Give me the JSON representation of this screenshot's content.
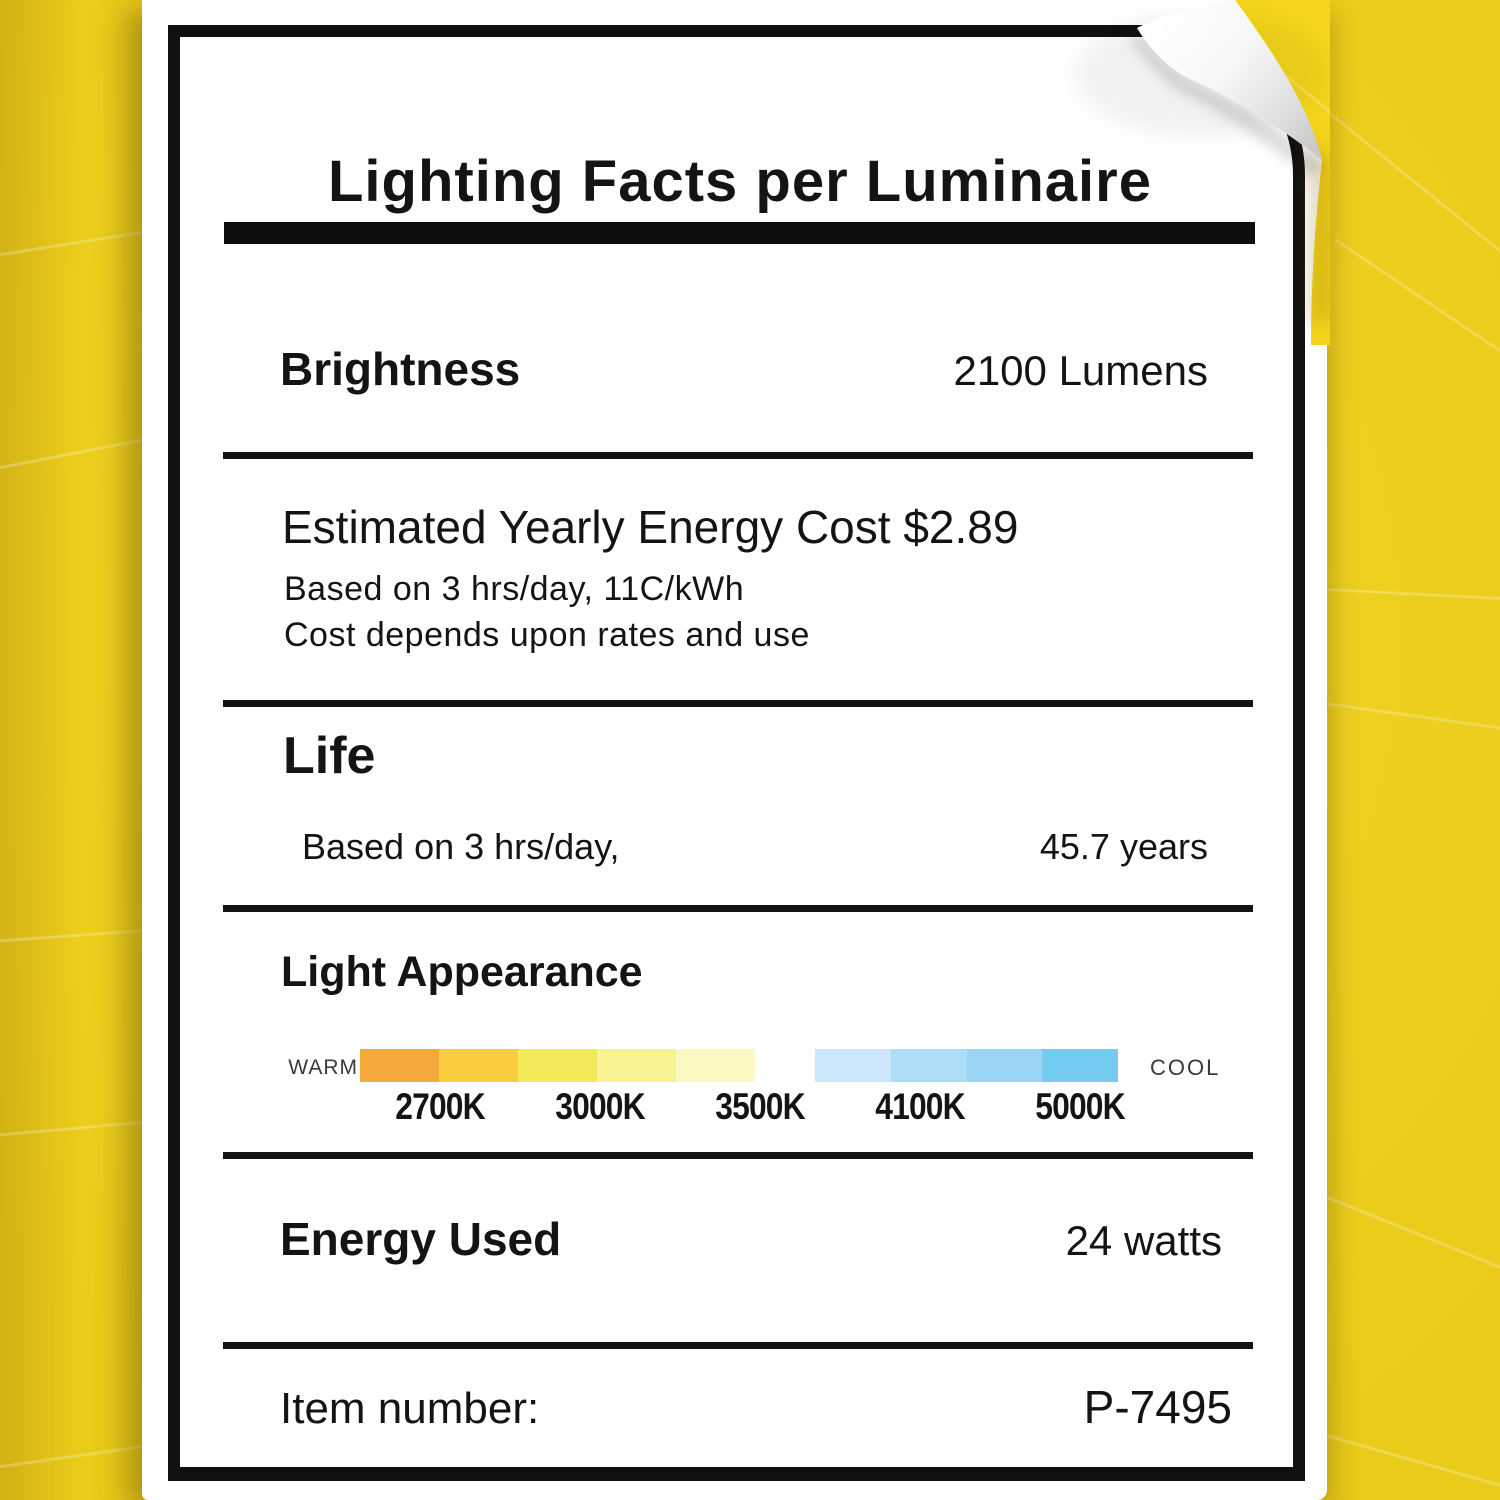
{
  "colors": {
    "background": "#F4D51B",
    "ink": "#141414",
    "frame": "#101010"
  },
  "label": {
    "title": "Lighting Facts per Luminaire",
    "brightness": {
      "name": "Brightness",
      "value": "2100 Lumens"
    },
    "energy_cost": {
      "heading": "Estimated Yearly Energy Cost $2.89",
      "basis": "Based on 3 hrs/day, 11C/kWh",
      "note": "Cost depends upon rates and use"
    },
    "life": {
      "heading": "Life",
      "basis": "Based on 3 hrs/day,",
      "value": "45.7 years"
    },
    "light_appearance": {
      "heading": "Light Appearance",
      "warm_label": "WARM",
      "cool_label": "COOL",
      "ticks": [
        "2700K",
        "3000K",
        "3500K",
        "4100K",
        "5000K"
      ],
      "warm_colors": [
        "#F4A93C",
        "#FACD3F",
        "#F1E95A",
        "#F7F292",
        "#FBF8C2"
      ],
      "cool_colors": [
        "#CCE6FB",
        "#AFDDF8",
        "#9BD5F6",
        "#74CBF0"
      ]
    },
    "energy_used": {
      "name": "Energy Used",
      "value": "24 watts"
    },
    "item_number": {
      "name": "Item number:",
      "value": "P-7495"
    }
  }
}
